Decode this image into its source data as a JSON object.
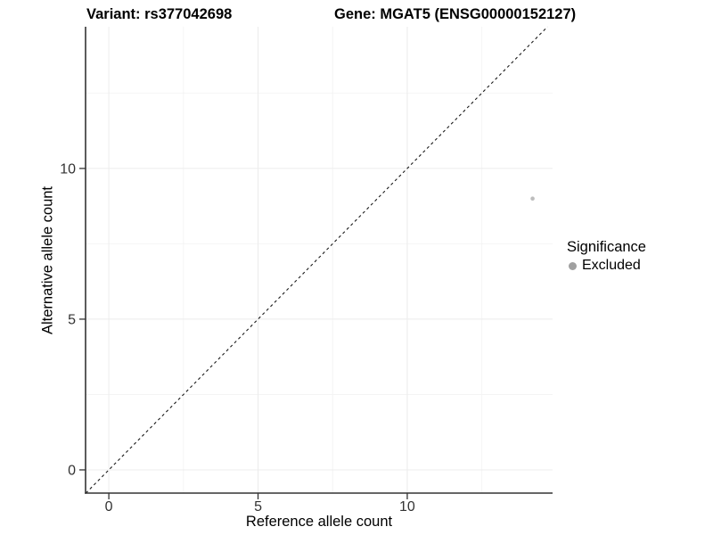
{
  "chart_data": {
    "type": "scatter",
    "titles": {
      "variant": "Variant: rs377042698",
      "gene": "Gene: MGAT5 (ENSG00000152127)"
    },
    "xlabel": "Reference allele count",
    "ylabel": "Alternative allele count",
    "xlim": [
      -0.78,
      14.87
    ],
    "ylim": [
      -0.77,
      14.7
    ],
    "x_major_ticks": [
      0,
      5,
      10
    ],
    "y_major_ticks": [
      0,
      5,
      10
    ],
    "x_minor_ticks": [
      2.5,
      7.5,
      12.5
    ],
    "y_minor_ticks": [
      2.5,
      7.5,
      12.5
    ],
    "grid": {
      "show": true,
      "major_color": "#ececec",
      "minor_color": "#f4f4f4"
    },
    "identity_line": {
      "equation": "y = x",
      "style": "dashed",
      "color": "#1a1a1a"
    },
    "series": [
      {
        "name": "Excluded",
        "color": "#bdbdbd",
        "points": [
          {
            "x": 14.2,
            "y": 9
          }
        ]
      }
    ],
    "legend": {
      "title": "Significance",
      "position": "right",
      "items": [
        {
          "label": "Excluded",
          "color": "#a0a0a0",
          "marker": "circle"
        }
      ]
    },
    "axis": {
      "line_color": "#333333",
      "tick_color": "#333333",
      "tick_label_color": "#333333"
    }
  }
}
